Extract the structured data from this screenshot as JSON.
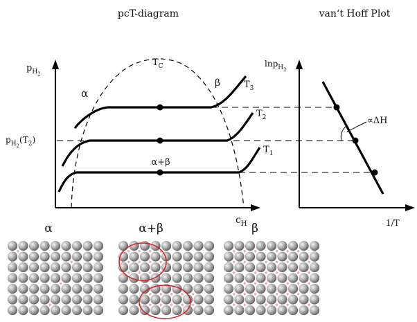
{
  "left_panel": {
    "title": "pcT-diagram",
    "y_axis": {
      "main": "p",
      "sub": "H",
      "subsub": "2"
    },
    "x_axis": {
      "main": "c",
      "sub": "H"
    },
    "p_t2_label": {
      "main": "p",
      "sub": "H",
      "subsub": "2",
      "suffix": "(T",
      "suffix_sub": "2",
      "close": ")"
    },
    "critical": {
      "main": "T",
      "sub": "C"
    },
    "phase_alpha": "α",
    "phase_beta": "β",
    "phase_mix": "α+β",
    "isotherms": [
      {
        "main": "T",
        "sub": "3"
      },
      {
        "main": "T",
        "sub": "2"
      },
      {
        "main": "T",
        "sub": "1"
      }
    ]
  },
  "right_panel": {
    "title": "van‘t Hoff Plot",
    "y_axis": {
      "prefix": "lnp",
      "sub": "H",
      "subsub": "2"
    },
    "x_axis": "1/T",
    "slope_label": "∝ΔH"
  },
  "lattice": {
    "labels": [
      "α",
      "α+β",
      "β"
    ],
    "atom_color": "#9a9a9a",
    "hydrogen_color": "#f2a0a0",
    "ellipse_color": "#d42020"
  },
  "colors": {
    "line": "#000000",
    "dashed": "#000000"
  }
}
